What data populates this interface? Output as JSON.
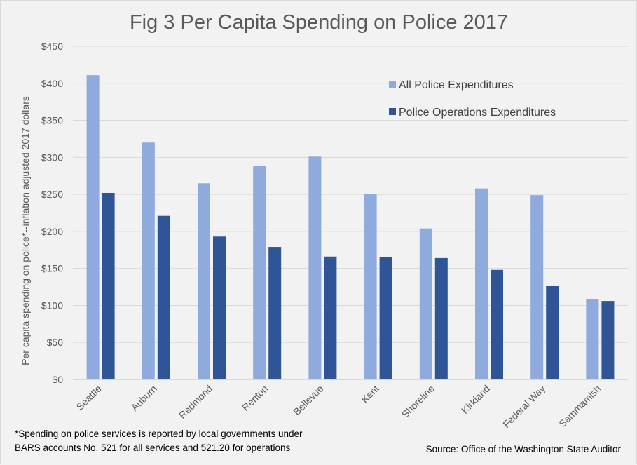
{
  "chart_data": {
    "type": "bar",
    "title": "Fig 3 Per Capita Spending on Police 2017",
    "ylabel": "Per capita spending on police*--inflation adjusted 2017 dollars",
    "xlabel": "",
    "categories": [
      "Seattle",
      "Auburn",
      "Redmond",
      "Renton",
      "Bellevue",
      "Kent",
      "Shoreline",
      "Kirkland",
      "Federal Way",
      "Sammamish"
    ],
    "series": [
      {
        "name": "All Police Expenditures",
        "color": "#8faadc",
        "values": [
          411,
          320,
          265,
          288,
          301,
          251,
          204,
          258,
          249,
          108
        ]
      },
      {
        "name": "Police Operations Expenditures",
        "color": "#2f5597",
        "values": [
          252,
          221,
          193,
          179,
          166,
          165,
          164,
          148,
          126,
          106
        ]
      }
    ],
    "ylim": [
      0,
      450
    ],
    "yticks": [
      0,
      50,
      100,
      150,
      200,
      250,
      300,
      350,
      400,
      450
    ],
    "ytick_labels": [
      "$0",
      "$50",
      "$100",
      "$150",
      "$200",
      "$250",
      "$300",
      "$350",
      "$400",
      "$450"
    ],
    "grid": true,
    "legend_position": "top-right"
  },
  "footnote": {
    "line1": "*Spending on police services is reported by local governments under",
    "line2": "BARS accounts No. 521  for all services and 521.20 for operations"
  },
  "source": "Source: Office of the Washington State Auditor"
}
